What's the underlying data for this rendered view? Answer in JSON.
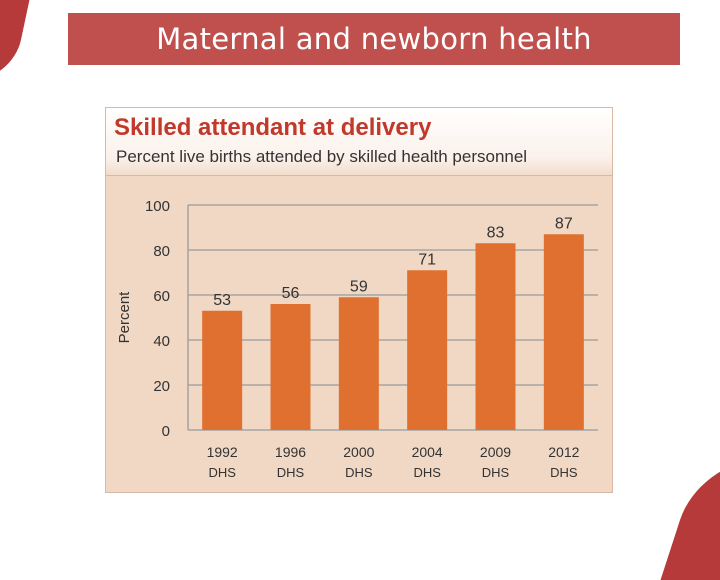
{
  "slide": {
    "title": "Maternal and newborn health",
    "accent_color": "#c0504d"
  },
  "chart_data": {
    "type": "bar",
    "title": "Skilled attendant at delivery",
    "subtitle": "Percent live births attended by skilled health personnel",
    "xlabel": "",
    "ylabel": "Percent",
    "ylim": [
      0,
      100
    ],
    "yticks": [
      0,
      20,
      40,
      60,
      80,
      100
    ],
    "grid": true,
    "categories": [
      {
        "year": "1992",
        "source": "DHS"
      },
      {
        "year": "1996",
        "source": "DHS"
      },
      {
        "year": "2000",
        "source": "DHS"
      },
      {
        "year": "2004",
        "source": "DHS"
      },
      {
        "year": "2009",
        "source": "DHS"
      },
      {
        "year": "2012",
        "source": "DHS"
      }
    ],
    "values": [
      53,
      56,
      59,
      71,
      83,
      87
    ],
    "bar_color": "#e07030",
    "background_color": "#f1d8c4",
    "title_color": "#c0392b"
  }
}
